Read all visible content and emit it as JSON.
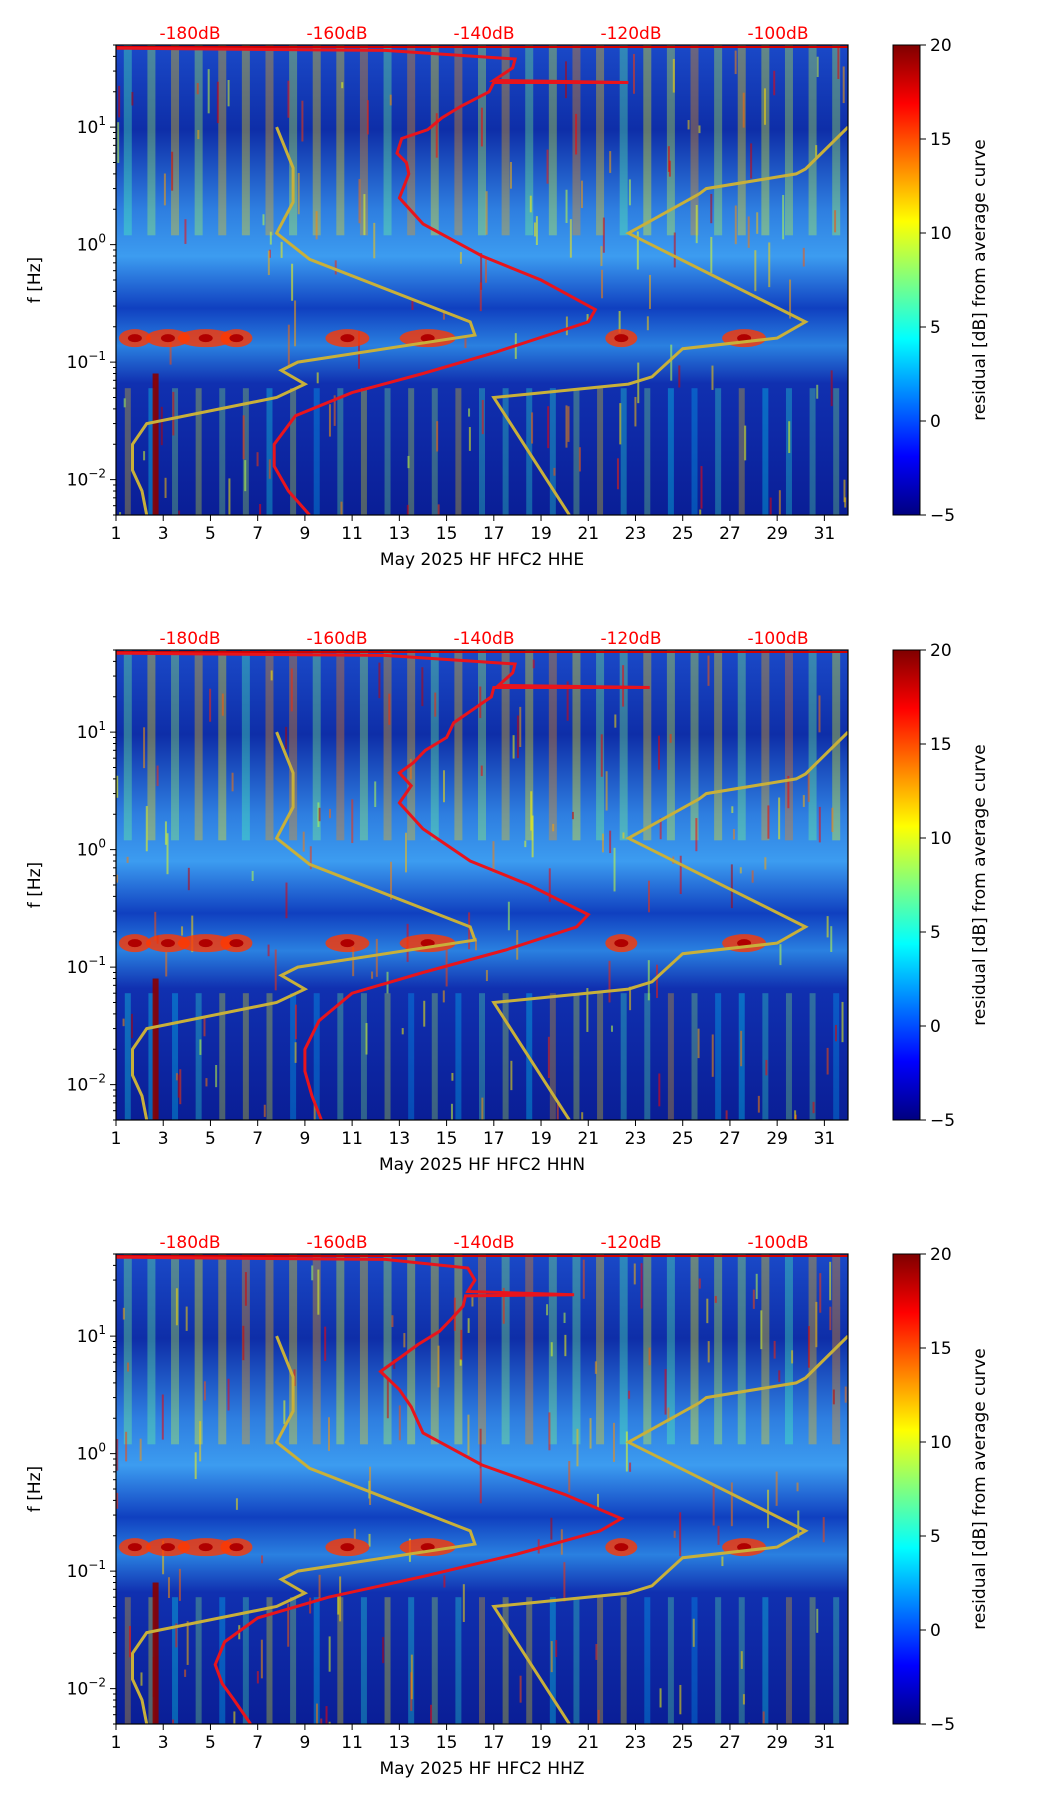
{
  "chart_data": [
    {
      "type": "heatmap",
      "title": "May 2025 HF HFC2  HHE",
      "xlabel": "May 2025 HF HFC2  HHE",
      "ylabel": "f [Hz]",
      "x_ticks": [
        "1",
        "3",
        "5",
        "7",
        "9",
        "11",
        "13",
        "15",
        "17",
        "19",
        "21",
        "23",
        "25",
        "27",
        "29",
        "31"
      ],
      "x_range": [
        1,
        32
      ],
      "y_scale": "log",
      "y_range": [
        0.005,
        50
      ],
      "y_ticks": [
        {
          "base": "10",
          "exp": "−2",
          "value": 0.01
        },
        {
          "base": "10",
          "exp": "−1",
          "value": 0.1
        },
        {
          "base": "10",
          "exp": "0",
          "value": 1
        },
        {
          "base": "10",
          "exp": "1",
          "value": 10
        }
      ],
      "top_db_labels": [
        "-180dB",
        "-160dB",
        "-140dB",
        "-120dB",
        "-100dB"
      ],
      "colorbar": {
        "label": "residual [dB] from average curve",
        "range": [
          -5,
          20
        ],
        "ticks": [
          "20",
          "15",
          "10",
          "5",
          "0",
          "−5"
        ]
      },
      "peterson_model": {
        "name": "noise model bounds",
        "color": "#c8b03a",
        "low_noise_day": [
          [
            2.3,
            0.005
          ],
          [
            2.1,
            0.008
          ],
          [
            1.7,
            0.012
          ],
          [
            1.7,
            0.02
          ],
          [
            2.3,
            0.03
          ],
          [
            7.8,
            0.05
          ],
          [
            9.0,
            0.065
          ],
          [
            8.0,
            0.085
          ],
          [
            8.7,
            0.1
          ],
          [
            16.2,
            0.17
          ],
          [
            16.0,
            0.22
          ],
          [
            9.2,
            0.75
          ],
          [
            7.8,
            1.25
          ],
          [
            8.5,
            2.3
          ],
          [
            8.5,
            4.5
          ],
          [
            7.8,
            10
          ]
        ],
        "high_noise_day": [
          [
            20.2,
            0.005
          ],
          [
            17.0,
            0.05
          ],
          [
            22.7,
            0.065
          ],
          [
            23.7,
            0.075
          ],
          [
            25.0,
            0.13
          ],
          [
            29.0,
            0.16
          ],
          [
            30.2,
            0.22
          ],
          [
            22.7,
            1.25
          ],
          [
            25.7,
            2.7
          ],
          [
            26.0,
            3.0
          ],
          [
            29.8,
            4.0
          ],
          [
            30.2,
            4.4
          ],
          [
            32.0,
            10
          ]
        ]
      },
      "median_curve": {
        "color": "#e8141c",
        "points": [
          [
            9.2,
            0.005
          ],
          [
            8.3,
            0.008
          ],
          [
            7.7,
            0.013
          ],
          [
            7.7,
            0.02
          ],
          [
            8.6,
            0.035
          ],
          [
            11.0,
            0.055
          ],
          [
            14.0,
            0.08
          ],
          [
            17.0,
            0.12
          ],
          [
            21.0,
            0.22
          ],
          [
            21.3,
            0.28
          ],
          [
            19.0,
            0.5
          ],
          [
            16.5,
            0.8
          ],
          [
            14.0,
            1.5
          ],
          [
            13.0,
            2.5
          ],
          [
            13.4,
            4.0
          ],
          [
            13.3,
            5.0
          ],
          [
            12.9,
            6.0
          ],
          [
            13.1,
            8.0
          ],
          [
            14.2,
            9.5
          ],
          [
            14.8,
            12
          ],
          [
            15.6,
            15
          ],
          [
            16.8,
            20
          ],
          [
            17.0,
            24
          ],
          [
            22.7,
            24
          ],
          [
            17.0,
            25
          ],
          [
            17.8,
            32
          ],
          [
            17.9,
            38
          ],
          [
            12.4,
            45
          ],
          [
            1.0,
            47
          ]
        ]
      }
    },
    {
      "type": "heatmap",
      "title": "May 2025 HF HFC2  HHN",
      "xlabel": "May 2025 HF HFC2  HHN",
      "ylabel": "f [Hz]",
      "x_ticks": [
        "1",
        "3",
        "5",
        "7",
        "9",
        "11",
        "13",
        "15",
        "17",
        "19",
        "21",
        "23",
        "25",
        "27",
        "29",
        "31"
      ],
      "x_range": [
        1,
        32
      ],
      "y_scale": "log",
      "y_range": [
        0.005,
        50
      ],
      "y_ticks": [
        {
          "base": "10",
          "exp": "−2",
          "value": 0.01
        },
        {
          "base": "10",
          "exp": "−1",
          "value": 0.1
        },
        {
          "base": "10",
          "exp": "0",
          "value": 1
        },
        {
          "base": "10",
          "exp": "1",
          "value": 10
        }
      ],
      "top_db_labels": [
        "-180dB",
        "-160dB",
        "-140dB",
        "-120dB",
        "-100dB"
      ],
      "colorbar": {
        "label": "residual [dB] from average curve",
        "range": [
          -5,
          20
        ],
        "ticks": [
          "20",
          "15",
          "10",
          "5",
          "0",
          "−5"
        ]
      },
      "peterson_model": {
        "name": "noise model bounds",
        "color": "#c8b03a",
        "low_noise_day": [
          [
            2.3,
            0.005
          ],
          [
            2.1,
            0.008
          ],
          [
            1.7,
            0.012
          ],
          [
            1.7,
            0.02
          ],
          [
            2.3,
            0.03
          ],
          [
            7.8,
            0.05
          ],
          [
            9.0,
            0.065
          ],
          [
            8.0,
            0.085
          ],
          [
            8.7,
            0.1
          ],
          [
            16.2,
            0.17
          ],
          [
            16.0,
            0.22
          ],
          [
            9.2,
            0.75
          ],
          [
            7.8,
            1.25
          ],
          [
            8.5,
            2.3
          ],
          [
            8.5,
            4.5
          ],
          [
            7.8,
            10
          ]
        ],
        "high_noise_day": [
          [
            20.2,
            0.005
          ],
          [
            17.0,
            0.05
          ],
          [
            22.7,
            0.065
          ],
          [
            23.7,
            0.075
          ],
          [
            25.0,
            0.13
          ],
          [
            29.0,
            0.16
          ],
          [
            30.2,
            0.22
          ],
          [
            22.7,
            1.25
          ],
          [
            25.7,
            2.7
          ],
          [
            26.0,
            3.0
          ],
          [
            29.8,
            4.0
          ],
          [
            30.2,
            4.4
          ],
          [
            32.0,
            10
          ]
        ]
      },
      "median_curve": {
        "color": "#e8141c",
        "points": [
          [
            9.7,
            0.005
          ],
          [
            9.3,
            0.008
          ],
          [
            9.0,
            0.013
          ],
          [
            9.0,
            0.02
          ],
          [
            9.6,
            0.035
          ],
          [
            11.0,
            0.06
          ],
          [
            14.0,
            0.09
          ],
          [
            17.5,
            0.14
          ],
          [
            20.5,
            0.22
          ],
          [
            21.0,
            0.28
          ],
          [
            18.5,
            0.5
          ],
          [
            16.0,
            0.8
          ],
          [
            14.0,
            1.5
          ],
          [
            13.0,
            2.5
          ],
          [
            13.5,
            3.5
          ],
          [
            13.0,
            4.5
          ],
          [
            13.6,
            5.5
          ],
          [
            14.1,
            7.0
          ],
          [
            15.0,
            9.0
          ],
          [
            15.3,
            12
          ],
          [
            16.2,
            16
          ],
          [
            16.9,
            20
          ],
          [
            17.0,
            24
          ],
          [
            23.6,
            24
          ],
          [
            17.2,
            25
          ],
          [
            17.8,
            32
          ],
          [
            17.9,
            38
          ],
          [
            12.4,
            45
          ],
          [
            1.0,
            47
          ]
        ]
      }
    },
    {
      "type": "heatmap",
      "title": "May 2025 HF HFC2  HHZ",
      "xlabel": "May 2025 HF HFC2  HHZ",
      "ylabel": "f [Hz]",
      "x_ticks": [
        "1",
        "3",
        "5",
        "7",
        "9",
        "11",
        "13",
        "15",
        "17",
        "19",
        "21",
        "23",
        "25",
        "27",
        "29",
        "31"
      ],
      "x_range": [
        1,
        32
      ],
      "y_scale": "log",
      "y_range": [
        0.005,
        50
      ],
      "y_ticks": [
        {
          "base": "10",
          "exp": "−2",
          "value": 0.01
        },
        {
          "base": "10",
          "exp": "−1",
          "value": 0.1
        },
        {
          "base": "10",
          "exp": "0",
          "value": 1
        },
        {
          "base": "10",
          "exp": "1",
          "value": 10
        }
      ],
      "top_db_labels": [
        "-180dB",
        "-160dB",
        "-140dB",
        "-120dB",
        "-100dB"
      ],
      "colorbar": {
        "label": "residual [dB] from average curve",
        "range": [
          -5,
          20
        ],
        "ticks": [
          "20",
          "15",
          "10",
          "5",
          "0",
          "−5"
        ]
      },
      "peterson_model": {
        "name": "noise model bounds",
        "color": "#c8b03a",
        "low_noise_day": [
          [
            2.3,
            0.005
          ],
          [
            2.1,
            0.008
          ],
          [
            1.7,
            0.012
          ],
          [
            1.7,
            0.02
          ],
          [
            2.3,
            0.03
          ],
          [
            7.8,
            0.05
          ],
          [
            9.0,
            0.065
          ],
          [
            8.0,
            0.085
          ],
          [
            8.7,
            0.1
          ],
          [
            16.2,
            0.17
          ],
          [
            16.0,
            0.22
          ],
          [
            9.2,
            0.75
          ],
          [
            7.8,
            1.25
          ],
          [
            8.5,
            2.3
          ],
          [
            8.5,
            4.5
          ],
          [
            7.8,
            10
          ]
        ],
        "high_noise_day": [
          [
            20.2,
            0.005
          ],
          [
            17.0,
            0.05
          ],
          [
            22.7,
            0.065
          ],
          [
            23.7,
            0.075
          ],
          [
            25.0,
            0.13
          ],
          [
            29.0,
            0.16
          ],
          [
            30.2,
            0.22
          ],
          [
            22.7,
            1.25
          ],
          [
            25.7,
            2.7
          ],
          [
            26.0,
            3.0
          ],
          [
            29.8,
            4.0
          ],
          [
            30.2,
            4.4
          ],
          [
            32.0,
            10
          ]
        ]
      },
      "median_curve": {
        "color": "#e8141c",
        "points": [
          [
            6.7,
            0.005
          ],
          [
            6.0,
            0.008
          ],
          [
            5.5,
            0.011
          ],
          [
            5.2,
            0.016
          ],
          [
            5.6,
            0.025
          ],
          [
            7.0,
            0.04
          ],
          [
            10.0,
            0.06
          ],
          [
            14.0,
            0.09
          ],
          [
            18.0,
            0.14
          ],
          [
            21.5,
            0.22
          ],
          [
            22.4,
            0.28
          ],
          [
            20.0,
            0.45
          ],
          [
            16.5,
            0.8
          ],
          [
            14.0,
            1.5
          ],
          [
            13.5,
            2.5
          ],
          [
            13.0,
            3.5
          ],
          [
            12.2,
            5.0
          ],
          [
            13.0,
            6.5
          ],
          [
            13.8,
            8.5
          ],
          [
            14.7,
            11
          ],
          [
            15.2,
            14
          ],
          [
            15.7,
            18
          ],
          [
            15.8,
            22
          ],
          [
            20.4,
            22.5
          ],
          [
            15.9,
            24
          ],
          [
            16.2,
            30
          ],
          [
            15.9,
            38
          ],
          [
            12.4,
            45
          ],
          [
            1.0,
            47
          ]
        ]
      }
    }
  ]
}
